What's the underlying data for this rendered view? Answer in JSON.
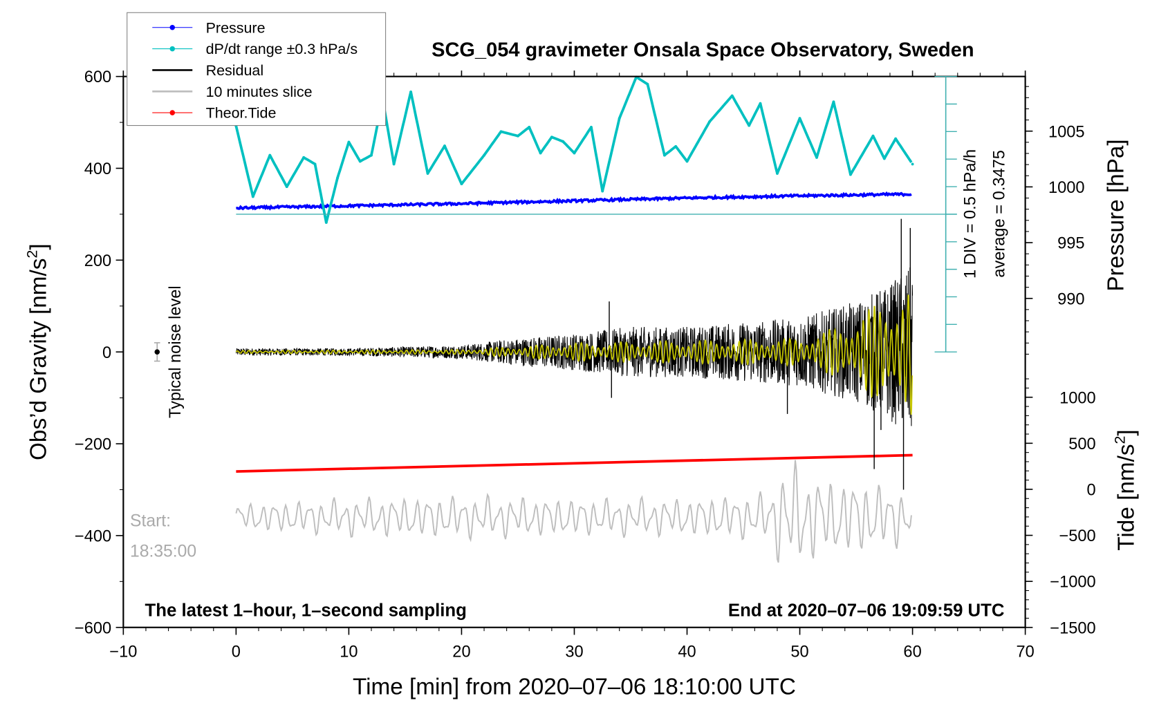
{
  "chart_data": {
    "type": "line",
    "title": "SCG_054 gravimeter Onsala Space Observatory, Sweden",
    "xlabel": "Time [min] from 2020–07–06 18:10:00 UTC",
    "ylabel_left": "Obs’d Gravity [nm/s²]",
    "ylabel_left_main": "Obs’d Gravity [nm/s",
    "ylabel_left_sup": "2",
    "ylabel_left_end": "]",
    "ylabel_pressure": "Pressure [hPa]",
    "ylabel_tide_main": "Tide [nm/s",
    "ylabel_tide_sup": "2",
    "ylabel_tide_end": "]",
    "xlim": [
      -10,
      70
    ],
    "ylim": [
      -600,
      600
    ],
    "pressure_ylim": [
      960.5,
      1009.9
    ],
    "tide_ylim": [
      -1500,
      4484
    ],
    "dpdt_ylim": [
      0,
      5
    ],
    "x_ticks": [
      "−10",
      "0",
      "10",
      "20",
      "30",
      "40",
      "50",
      "60",
      "70"
    ],
    "y_ticks": [
      "−600",
      "−400",
      "−200",
      "0",
      "200",
      "400",
      "600"
    ],
    "pressure_ticks": [
      "990",
      "995",
      "1000",
      "1005"
    ],
    "tide_ticks": [
      "−1500",
      "−1000",
      "−500",
      "0",
      "500",
      "1000"
    ],
    "legend": {
      "placement": "top-left",
      "entries": [
        {
          "label": "Pressure",
          "color": "#0000ff",
          "marker": true
        },
        {
          "label": "dP/dt range ±0.3 hPa/s",
          "color": "#00c0c0",
          "marker": true
        },
        {
          "label": "Residual",
          "color": "#000000",
          "marker": false
        },
        {
          "label": "10 minutes slice",
          "color": "#bebebe",
          "marker": false
        },
        {
          "label": "Theor.Tide",
          "color": "#ff0000",
          "marker": true
        }
      ]
    },
    "annotations": {
      "div_label": "1 DIV = 0.5 hPa/h",
      "average_label": "average = 0.3475",
      "noise_label": "Typical noise level",
      "start_label": "Start:",
      "start_time": "18:35:00",
      "sampling_note": "The latest 1–hour, 1–second sampling",
      "end_note": "End at 2020–07–06 19:09:59 UTC"
    },
    "noise_level": {
      "x": -7,
      "y": 0,
      "err": 20
    },
    "series": [
      {
        "name": "Pressure",
        "axis": "pressure",
        "color": "#0000ff",
        "x": [
          0,
          10,
          20,
          30,
          40,
          50,
          60
        ],
        "y": [
          998.1,
          998.3,
          998.5,
          998.75,
          999.0,
          999.2,
          999.35
        ]
      },
      {
        "name": "dP/dt",
        "axis": "dpdt",
        "unit": "hPa/h",
        "color": "#00c0c0",
        "x": [
          0,
          1.5,
          3,
          4.5,
          6,
          7,
          8,
          9,
          10,
          11,
          12,
          13,
          14,
          15.5,
          17,
          18.5,
          20,
          22,
          23.5,
          25,
          26,
          27,
          28,
          29,
          30,
          31.5,
          32.5,
          34,
          35.5,
          36.5,
          38,
          39,
          40,
          42,
          44,
          45.5,
          46.5,
          48,
          50,
          51.5,
          53,
          54.5,
          56.5,
          57.5,
          58.5,
          60
        ],
        "y": [
          4.1,
          2.82,
          3.57,
          3.0,
          3.53,
          3.41,
          2.35,
          3.16,
          3.81,
          3.46,
          3.57,
          4.59,
          3.41,
          4.72,
          3.24,
          3.74,
          3.05,
          3.57,
          4.0,
          3.92,
          4.08,
          3.61,
          3.9,
          3.82,
          3.61,
          4.08,
          2.92,
          4.24,
          4.99,
          4.86,
          3.57,
          3.73,
          3.46,
          4.18,
          4.65,
          4.11,
          4.51,
          3.24,
          4.24,
          3.53,
          4.54,
          3.22,
          3.92,
          3.51,
          3.87,
          3.41
        ]
      },
      {
        "name": "Residual",
        "axis": "gravity",
        "color": "#000000",
        "envelope_x": [
          0,
          10,
          20,
          25,
          30,
          35,
          40,
          45,
          50,
          55,
          58,
          60
        ],
        "envelope_y": [
          8,
          8,
          15,
          30,
          40,
          55,
          55,
          65,
          75,
          110,
          150,
          190
        ],
        "spikes": [
          [
            33.1,
            110
          ],
          [
            33.3,
            -100
          ],
          [
            48.9,
            -135
          ],
          [
            56.6,
            -255
          ],
          [
            57.2,
            -170
          ],
          [
            59.0,
            290
          ],
          [
            59.2,
            -300
          ],
          [
            59.8,
            270
          ]
        ]
      },
      {
        "name": "Residual filtered",
        "axis": "gravity",
        "color": "#c8c800",
        "envelope_x": [
          0,
          20,
          30,
          40,
          50,
          54,
          57,
          60
        ],
        "envelope_y": [
          3,
          5,
          20,
          25,
          30,
          60,
          110,
          140
        ]
      },
      {
        "name": "10 minutes slice",
        "axis": "gravity",
        "color": "#bebebe",
        "offset": -360,
        "envelope_x": [
          0,
          10,
          20,
          30,
          40,
          47,
          49,
          51,
          53,
          55,
          60
        ],
        "envelope_y": [
          25,
          35,
          40,
          35,
          35,
          45,
          110,
          80,
          70,
          70,
          50
        ]
      },
      {
        "name": "Theor.Tide",
        "axis": "tide",
        "color": "#ff0000",
        "x": [
          0,
          60
        ],
        "y": [
          194,
          371
        ]
      }
    ]
  }
}
